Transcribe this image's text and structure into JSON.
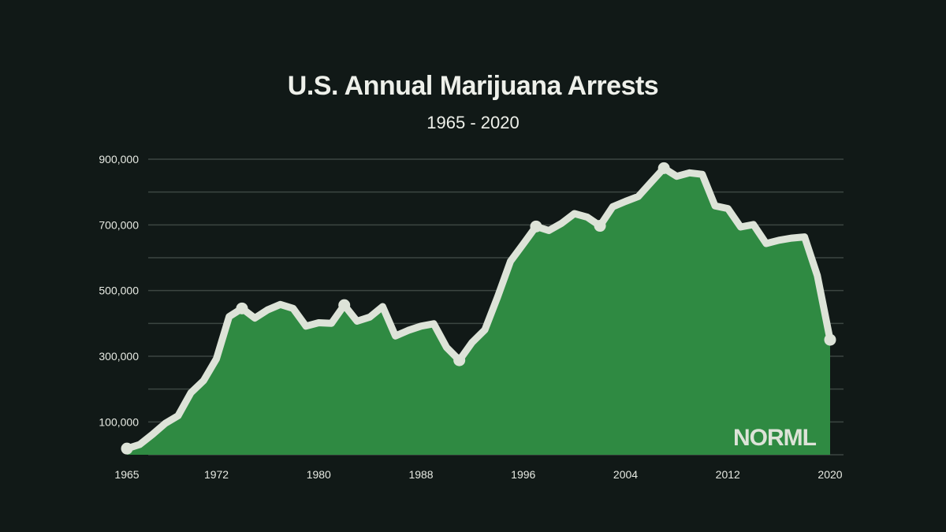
{
  "chart_data": {
    "type": "area",
    "title": "U.S. Annual Marijuana Arrests",
    "subtitle": "1965 - 2020",
    "xlabel": "",
    "ylabel": "",
    "xlim": [
      1965,
      2020
    ],
    "ylim": [
      0,
      900000
    ],
    "grid": true,
    "x_ticks": [
      1965,
      1972,
      1980,
      1988,
      1996,
      2004,
      2012,
      2020
    ],
    "y_ticks": [
      {
        "value": 100000,
        "label": "100,000"
      },
      {
        "value": 300000,
        "label": "300,000"
      },
      {
        "value": 500000,
        "label": "500,000"
      },
      {
        "value": 700000,
        "label": "700,000"
      },
      {
        "value": 900000,
        "label": "900,000"
      }
    ],
    "x": [
      1965,
      1966,
      1967,
      1968,
      1969,
      1970,
      1971,
      1972,
      1973,
      1974,
      1975,
      1976,
      1977,
      1978,
      1979,
      1980,
      1981,
      1982,
      1983,
      1984,
      1985,
      1986,
      1987,
      1988,
      1989,
      1990,
      1991,
      1992,
      1993,
      1994,
      1995,
      1996,
      1997,
      1998,
      1999,
      2000,
      2001,
      2002,
      2003,
      2004,
      2005,
      2006,
      2007,
      2008,
      2009,
      2010,
      2011,
      2012,
      2013,
      2014,
      2015,
      2016,
      2017,
      2018,
      2019,
      2020
    ],
    "values": [
      18815,
      31119,
      61843,
      95870,
      118903,
      188682,
      225828,
      292179,
      420700,
      445600,
      416100,
      441100,
      457600,
      445800,
      391600,
      401982,
      400300,
      455600,
      406900,
      419400,
      451138,
      361800,
      378709,
      391600,
      399000,
      326850,
      287850,
      342300,
      380700,
      481100,
      588963,
      641642,
      695201,
      682885,
      704812,
      734497,
      723627,
      697082,
      755186,
      771605,
      786545,
      829625,
      872720,
      847864,
      858408,
      853839,
      757969,
      749825,
      693482,
      700993,
      643121,
      653249,
      659700,
      663367,
      545602,
      350150
    ],
    "markers": [
      1965,
      1974,
      1982,
      1991,
      1997,
      2002,
      2007,
      2020
    ],
    "colors": {
      "background": "#111917",
      "fill": "#2f8a42",
      "line": "#dde3d8",
      "grid": "#3c4642"
    }
  },
  "logo": "NORML"
}
